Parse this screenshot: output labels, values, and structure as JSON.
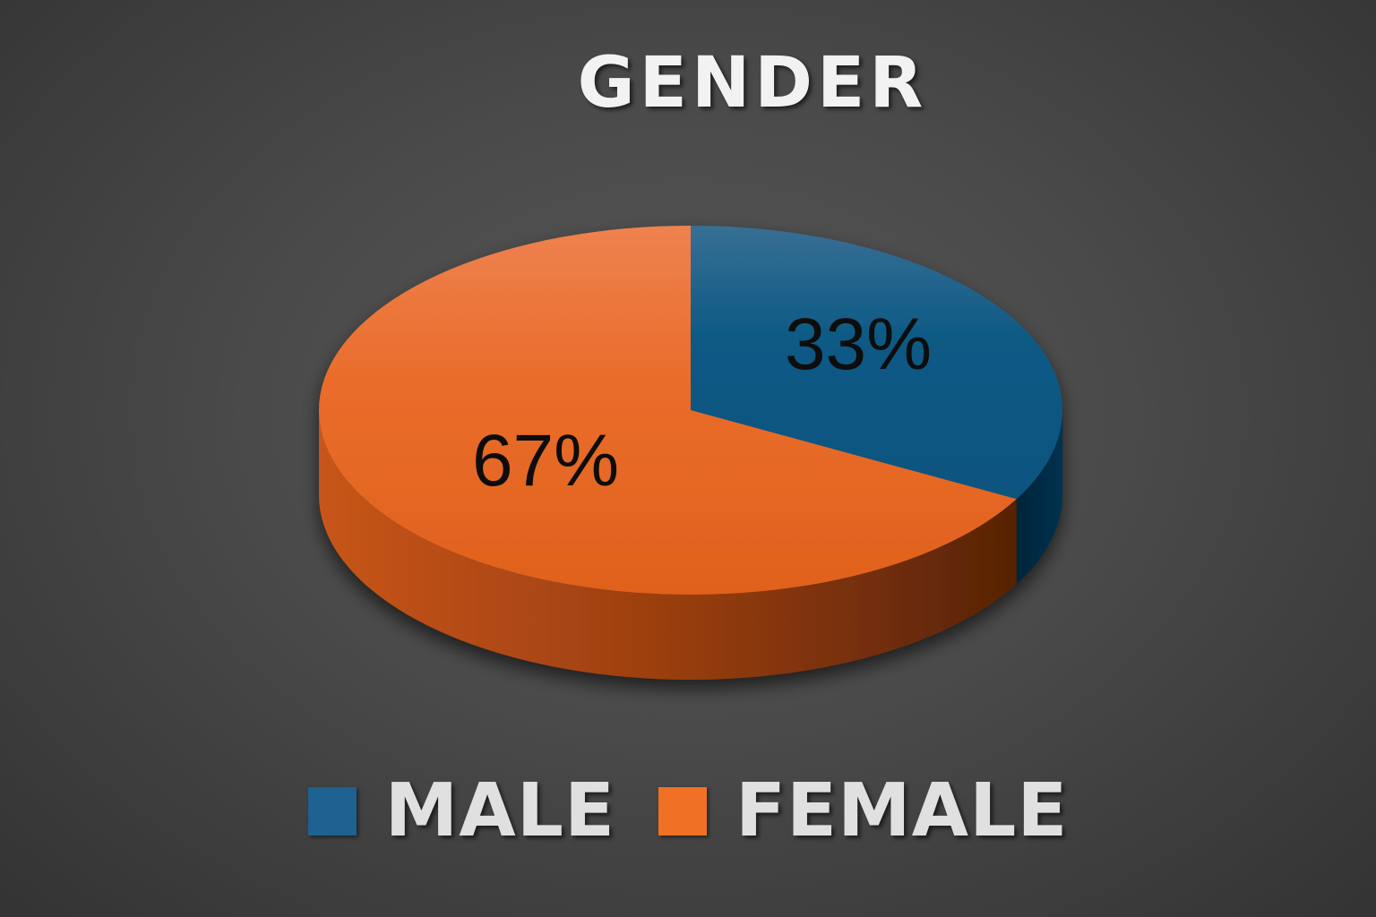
{
  "chart_data": {
    "type": "pie",
    "title": "GENDER",
    "series": [
      {
        "name": "MALE",
        "value": 33,
        "label": "33%",
        "color": "#1e6291"
      },
      {
        "name": "FEMALE",
        "value": 67,
        "label": "67%",
        "color": "#f07126"
      }
    ],
    "legend_position": "bottom",
    "style": "3d"
  }
}
